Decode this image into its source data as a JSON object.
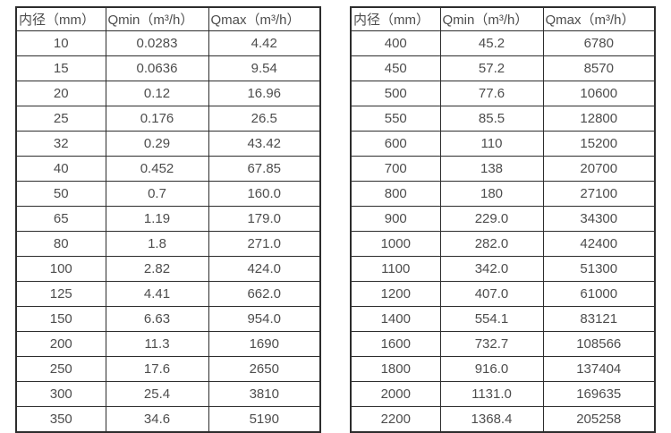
{
  "colors": {
    "background": "#ffffff",
    "text": "#4d4d4d",
    "border": "#2d2d2d"
  },
  "tables": [
    {
      "name": "flow-range-table-dn10-350",
      "headers": [
        "内径（mm）",
        "Qmin（m³/h）",
        "Qmax（m³/h）"
      ],
      "rows": [
        [
          "10",
          "0.0283",
          "4.42"
        ],
        [
          "15",
          "0.0636",
          "9.54"
        ],
        [
          "20",
          "0.12",
          "16.96"
        ],
        [
          "25",
          "0.176",
          "26.5"
        ],
        [
          "32",
          "0.29",
          "43.42"
        ],
        [
          "40",
          "0.452",
          "67.85"
        ],
        [
          "50",
          "0.7",
          "160.0"
        ],
        [
          "65",
          "1.19",
          "179.0"
        ],
        [
          "80",
          "1.8",
          "271.0"
        ],
        [
          "100",
          "2.82",
          "424.0"
        ],
        [
          "125",
          "4.41",
          "662.0"
        ],
        [
          "150",
          "6.63",
          "954.0"
        ],
        [
          "200",
          "11.3",
          "1690"
        ],
        [
          "250",
          "17.6",
          "2650"
        ],
        [
          "300",
          "25.4",
          "3810"
        ],
        [
          "350",
          "34.6",
          "5190"
        ]
      ]
    },
    {
      "name": "flow-range-table-dn400-2200",
      "headers": [
        "内径（mm）",
        "Qmin（m³/h）",
        "Qmax（m³/h）"
      ],
      "rows": [
        [
          "400",
          "45.2",
          "6780"
        ],
        [
          "450",
          "57.2",
          "8570"
        ],
        [
          "500",
          "77.6",
          "10600"
        ],
        [
          "550",
          "85.5",
          "12800"
        ],
        [
          "600",
          "110",
          "15200"
        ],
        [
          "700",
          "138",
          "20700"
        ],
        [
          "800",
          "180",
          "27100"
        ],
        [
          "900",
          "229.0",
          "34300"
        ],
        [
          "1000",
          "282.0",
          "42400"
        ],
        [
          "1100",
          "342.0",
          "51300"
        ],
        [
          "1200",
          "407.0",
          "61000"
        ],
        [
          "1400",
          "554.1",
          "83121"
        ],
        [
          "1600",
          "732.7",
          "108566"
        ],
        [
          "1800",
          "916.0",
          "137404"
        ],
        [
          "2000",
          "1131.0",
          "169635"
        ],
        [
          "2200",
          "1368.4",
          "205258"
        ]
      ]
    }
  ]
}
